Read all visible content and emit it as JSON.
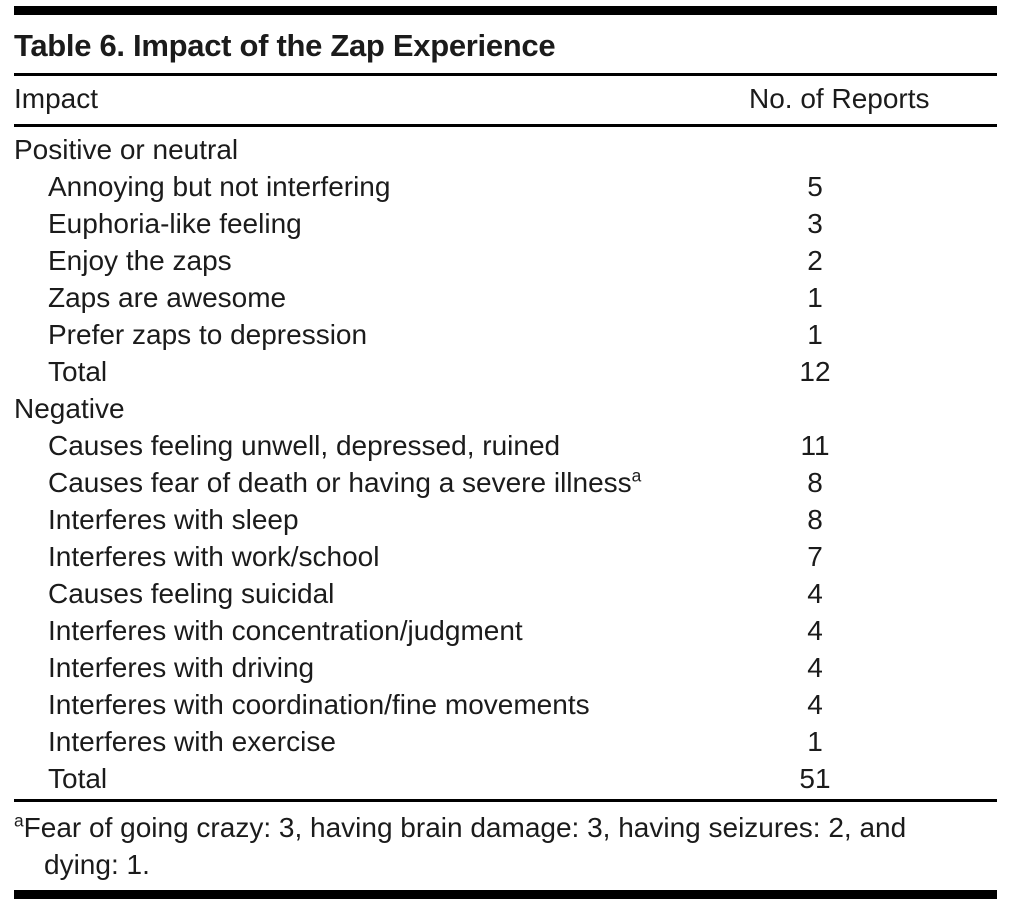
{
  "table": {
    "title": "Table 6. Impact of the Zap Experience",
    "col_impact": "Impact",
    "col_reports": "No. of Reports",
    "rows": [
      {
        "label": "Positive or neutral",
        "value": ""
      },
      {
        "label": "Annoying but not interfering",
        "value": "5"
      },
      {
        "label": "Euphoria-like feeling",
        "value": "3"
      },
      {
        "label": "Enjoy the zaps",
        "value": "2"
      },
      {
        "label": "Zaps are awesome",
        "value": "1"
      },
      {
        "label": "Prefer zaps to depression",
        "value": "1"
      },
      {
        "label": "Total",
        "value": "12"
      },
      {
        "label": "Negative",
        "value": ""
      },
      {
        "label": "Causes feeling unwell, depressed, ruined",
        "value": "11"
      },
      {
        "label": "Causes fear of death or having a severe illness",
        "sup": "a",
        "value": "8"
      },
      {
        "label": "Interferes with sleep",
        "value": "8"
      },
      {
        "label": "Interferes with work/school",
        "value": "7"
      },
      {
        "label": "Causes feeling suicidal",
        "value": "4"
      },
      {
        "label": "Interferes with concentration/judgment",
        "value": "4"
      },
      {
        "label": "Interferes with driving",
        "value": "4"
      },
      {
        "label": "Interferes with coordination/fine movements",
        "value": "4"
      },
      {
        "label": "Interferes with exercise",
        "value": "1"
      },
      {
        "label": "Total",
        "value": "51"
      }
    ],
    "footnote": {
      "marker": "a",
      "text": "Fear of going crazy: 3, having brain damage: 3, having seizures: 2, and dying: 1."
    }
  },
  "chart_data": {
    "type": "table",
    "title": "Table 6. Impact of the Zap Experience",
    "columns": [
      "Impact",
      "No. of Reports"
    ],
    "rows": [
      [
        "Positive or neutral",
        null
      ],
      [
        "Annoying but not interfering",
        5
      ],
      [
        "Euphoria-like feeling",
        3
      ],
      [
        "Enjoy the zaps",
        2
      ],
      [
        "Zaps are awesome",
        1
      ],
      [
        "Prefer zaps to depression",
        1
      ],
      [
        "Total (positive or neutral)",
        12
      ],
      [
        "Negative",
        null
      ],
      [
        "Causes feeling unwell, depressed, ruined",
        11
      ],
      [
        "Causes fear of death or having a severe illness (a)",
        8
      ],
      [
        "Interferes with sleep",
        8
      ],
      [
        "Interferes with work/school",
        7
      ],
      [
        "Causes feeling suicidal",
        4
      ],
      [
        "Interferes with concentration/judgment",
        4
      ],
      [
        "Interferes with driving",
        4
      ],
      [
        "Interferes with coordination/fine movements",
        4
      ],
      [
        "Interferes with exercise",
        1
      ],
      [
        "Total (negative)",
        51
      ]
    ],
    "footnote": "a: Fear of going crazy: 3, having brain damage: 3, having seizures: 2, and dying: 1."
  }
}
